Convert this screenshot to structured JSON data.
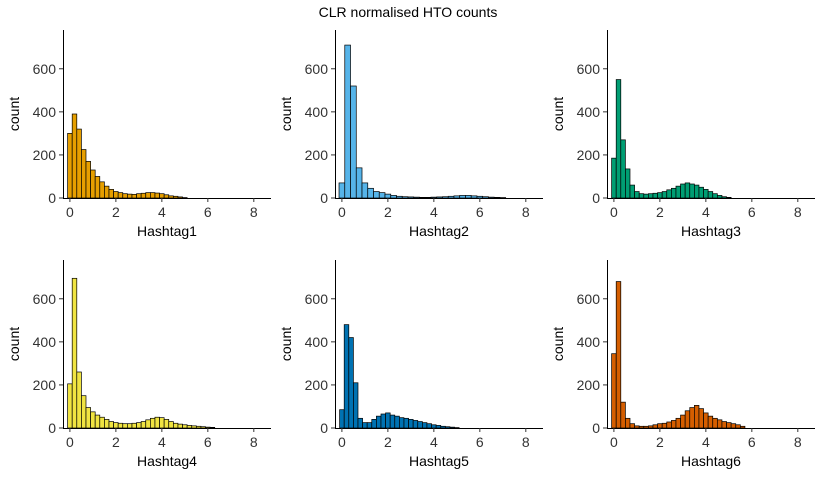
{
  "title": "CLR normalised HTO counts",
  "chart_data": [
    {
      "type": "bar",
      "panel": "Hashtag1",
      "xlabel": "Hashtag1",
      "ylabel": "count",
      "xlim": [
        -0.3,
        8.4
      ],
      "ylim": [
        0,
        780
      ],
      "xticks": [
        0,
        2,
        4,
        6,
        8
      ],
      "yticks": [
        0,
        200,
        400,
        600
      ],
      "color": "#E69F00",
      "bin_width": 0.2,
      "bin_start": -0.1,
      "values": [
        300,
        390,
        320,
        225,
        170,
        130,
        100,
        75,
        55,
        40,
        30,
        25,
        20,
        18,
        17,
        20,
        22,
        25,
        25,
        23,
        20,
        15,
        10,
        8,
        5,
        2
      ]
    },
    {
      "type": "bar",
      "panel": "Hashtag2",
      "xlabel": "Hashtag2",
      "ylabel": "count",
      "xlim": [
        -0.3,
        8.4
      ],
      "ylim": [
        0,
        780
      ],
      "xticks": [
        0,
        2,
        4,
        6,
        8
      ],
      "yticks": [
        0,
        200,
        400,
        600
      ],
      "color": "#56B4E9",
      "bin_width": 0.25,
      "bin_start": -0.125,
      "values": [
        70,
        710,
        520,
        140,
        70,
        45,
        30,
        25,
        18,
        12,
        8,
        6,
        5,
        4,
        3,
        3,
        4,
        5,
        6,
        8,
        10,
        12,
        12,
        10,
        8,
        6,
        4,
        3,
        2
      ]
    },
    {
      "type": "bar",
      "panel": "Hashtag3",
      "xlabel": "Hashtag3",
      "ylabel": "count",
      "xlim": [
        -0.3,
        8.4
      ],
      "ylim": [
        0,
        780
      ],
      "xticks": [
        0,
        2,
        4,
        6,
        8
      ],
      "yticks": [
        0,
        200,
        400,
        600
      ],
      "color": "#009E73",
      "bin_width": 0.2,
      "bin_start": -0.1,
      "values": [
        185,
        550,
        270,
        135,
        60,
        30,
        20,
        18,
        20,
        22,
        25,
        30,
        38,
        45,
        55,
        65,
        70,
        65,
        60,
        50,
        40,
        30,
        20,
        12,
        6,
        3
      ]
    },
    {
      "type": "bar",
      "panel": "Hashtag4",
      "xlabel": "Hashtag4",
      "ylabel": "count",
      "xlim": [
        -0.3,
        8.4
      ],
      "ylim": [
        0,
        780
      ],
      "xticks": [
        0,
        2,
        4,
        6,
        8
      ],
      "yticks": [
        0,
        200,
        400,
        600
      ],
      "color": "#F0E442",
      "bin_width": 0.2,
      "bin_start": -0.1,
      "values": [
        205,
        695,
        260,
        150,
        95,
        75,
        60,
        50,
        40,
        30,
        25,
        22,
        20,
        20,
        22,
        25,
        30,
        38,
        45,
        50,
        48,
        40,
        30,
        22,
        18,
        15,
        12,
        10,
        8,
        6,
        4,
        3
      ]
    },
    {
      "type": "bar",
      "panel": "Hashtag5",
      "xlabel": "Hashtag5",
      "ylabel": "count",
      "xlim": [
        -0.3,
        8.4
      ],
      "ylim": [
        0,
        780
      ],
      "xticks": [
        0,
        2,
        4,
        6,
        8
      ],
      "yticks": [
        0,
        200,
        400,
        600
      ],
      "color": "#0072B2",
      "bin_width": 0.2,
      "bin_start": -0.1,
      "values": [
        85,
        480,
        420,
        210,
        45,
        25,
        25,
        40,
        55,
        65,
        70,
        60,
        55,
        48,
        45,
        40,
        35,
        30,
        25,
        20,
        15,
        12,
        8,
        6,
        4,
        2
      ]
    },
    {
      "type": "bar",
      "panel": "Hashtag6",
      "xlabel": "Hashtag6",
      "ylabel": "count",
      "xlim": [
        -0.3,
        8.4
      ],
      "ylim": [
        0,
        780
      ],
      "xticks": [
        0,
        2,
        4,
        6,
        8
      ],
      "yticks": [
        0,
        200,
        400,
        600
      ],
      "color": "#D55E00",
      "bin_width": 0.2,
      "bin_start": -0.1,
      "values": [
        345,
        680,
        120,
        45,
        20,
        10,
        8,
        8,
        10,
        15,
        20,
        22,
        28,
        35,
        45,
        60,
        80,
        95,
        105,
        90,
        70,
        55,
        45,
        38,
        30,
        25,
        20,
        15,
        8
      ]
    }
  ]
}
